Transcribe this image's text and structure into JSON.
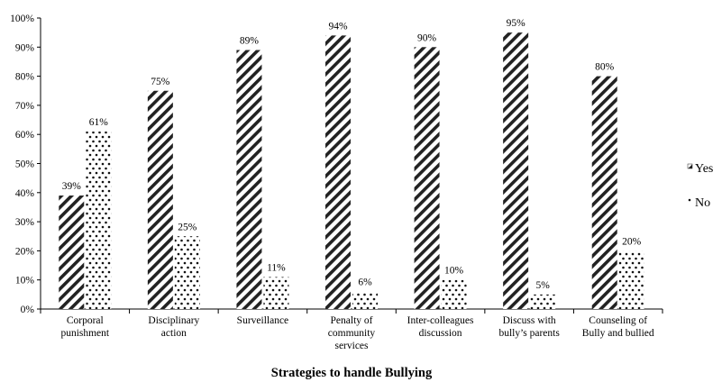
{
  "chart_data": {
    "type": "bar",
    "categories": [
      [
        "Corporal",
        "punishment"
      ],
      [
        "Disciplinary",
        "action"
      ],
      [
        "Surveillance"
      ],
      [
        "Penalty of",
        "community",
        "services"
      ],
      [
        "Inter-colleagues",
        "discussion"
      ],
      [
        "Discuss with",
        "bully’s parents"
      ],
      [
        "Counseling of",
        "Bully and bullied"
      ]
    ],
    "series": [
      {
        "name": "Yes",
        "values": [
          39,
          75,
          89,
          94,
          90,
          95,
          80
        ],
        "labels": [
          "39%",
          "75%",
          "89%",
          "94%",
          "90%",
          "95%",
          "80%"
        ],
        "pattern": "diagonal-stripes"
      },
      {
        "name": "No",
        "values": [
          61,
          25,
          11,
          6,
          10,
          5,
          20
        ],
        "labels": [
          "61%",
          "25%",
          "11%",
          "6%",
          "10%",
          "5%",
          "20%"
        ],
        "pattern": "dots"
      }
    ],
    "xlabel": "Strategies to handle Bullying",
    "ylabel": "",
    "ylim": [
      0,
      100
    ],
    "yticks": [
      "0%",
      "10%",
      "20%",
      "30%",
      "40%",
      "50%",
      "60%",
      "70%",
      "80%",
      "90%",
      "100%"
    ],
    "grid": false,
    "legend": "right"
  }
}
